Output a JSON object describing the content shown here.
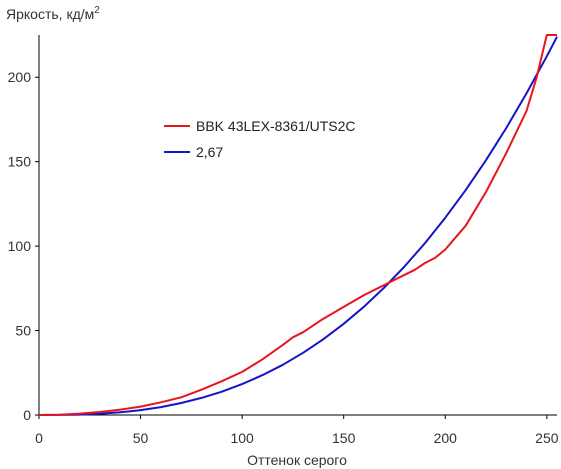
{
  "chart_data": {
    "type": "line",
    "title": "",
    "ylabel": "Яркость, кд/м",
    "ylabel_superscript": "2",
    "xlabel": "Оттенок серого",
    "xlim": [
      0,
      255
    ],
    "ylim": [
      0,
      225
    ],
    "x_ticks": [
      "0",
      "50",
      "100",
      "150",
      "200",
      "250"
    ],
    "y_ticks": [
      "0",
      "50",
      "100",
      "150",
      "200"
    ],
    "legend_position": "upper-left",
    "grid": false,
    "series": [
      {
        "name": "BBK 43LEX-8361/UTS2C",
        "color": "#e8141e",
        "x": [
          0,
          10,
          20,
          30,
          40,
          50,
          60,
          70,
          80,
          90,
          100,
          110,
          120,
          125,
          130,
          140,
          150,
          160,
          170,
          175,
          180,
          185,
          190,
          195,
          200,
          210,
          220,
          230,
          240,
          245,
          250,
          255
        ],
        "y": [
          0,
          0.2,
          0.8,
          1.8,
          3.2,
          5,
          7.5,
          10.5,
          15,
          20,
          25.5,
          33,
          41.5,
          46,
          49,
          57,
          64,
          71,
          77,
          80,
          83,
          86,
          90,
          93,
          98,
          112,
          132,
          155,
          180,
          200,
          225,
          225
        ]
      },
      {
        "name": "2,67",
        "color": "#1414c8",
        "x": [
          0,
          10,
          20,
          30,
          40,
          50,
          60,
          70,
          80,
          90,
          100,
          110,
          120,
          130,
          140,
          150,
          160,
          170,
          180,
          190,
          200,
          210,
          220,
          230,
          240,
          250,
          255
        ],
        "y": [
          0,
          0.04,
          0.25,
          0.74,
          1.6,
          2.9,
          4.7,
          7.1,
          10.1,
          13.8,
          18.3,
          23.6,
          29.7,
          36.8,
          44.9,
          54,
          64.1,
          75.5,
          88,
          101.8,
          116.8,
          133.1,
          150.8,
          169.9,
          190.4,
          212.4,
          224
        ]
      }
    ]
  }
}
